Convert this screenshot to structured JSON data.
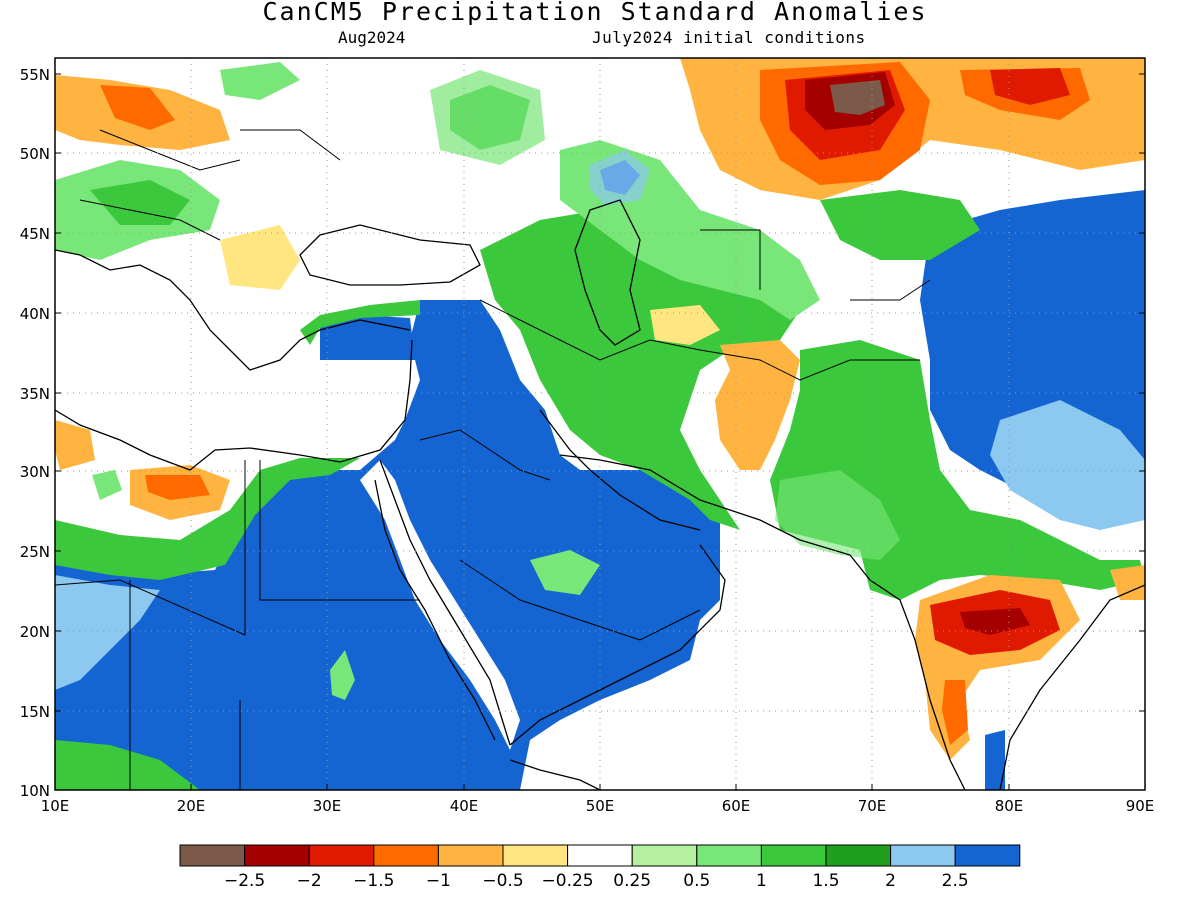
{
  "title": "CanCM5 Precipitation Standard Anomalies",
  "valid_month": "Aug2024",
  "initial_conditions": "July2024 initial conditions",
  "lat_labels": [
    "55N",
    "50N",
    "45N",
    "40N",
    "35N",
    "30N",
    "25N",
    "20N",
    "15N",
    "10N"
  ],
  "lon_labels": [
    "10E",
    "20E",
    "30E",
    "40E",
    "50E",
    "60E",
    "70E",
    "80E",
    "90E"
  ],
  "colorbar": {
    "colors": [
      "#7b5a4a",
      "#a50000",
      "#e01a00",
      "#ff6a00",
      "#ffb340",
      "#ffe680",
      "#ffffff",
      "#b4f0a0",
      "#78e678",
      "#3cc83c",
      "#1ea01e",
      "#8cc8f0",
      "#1464d2"
    ],
    "labels": [
      "−2.5",
      "−2",
      "−1.5",
      "−1",
      "−0.5",
      "−0.25",
      "0.25",
      "0.5",
      "1",
      "1.5",
      "2",
      "2.5"
    ]
  }
}
